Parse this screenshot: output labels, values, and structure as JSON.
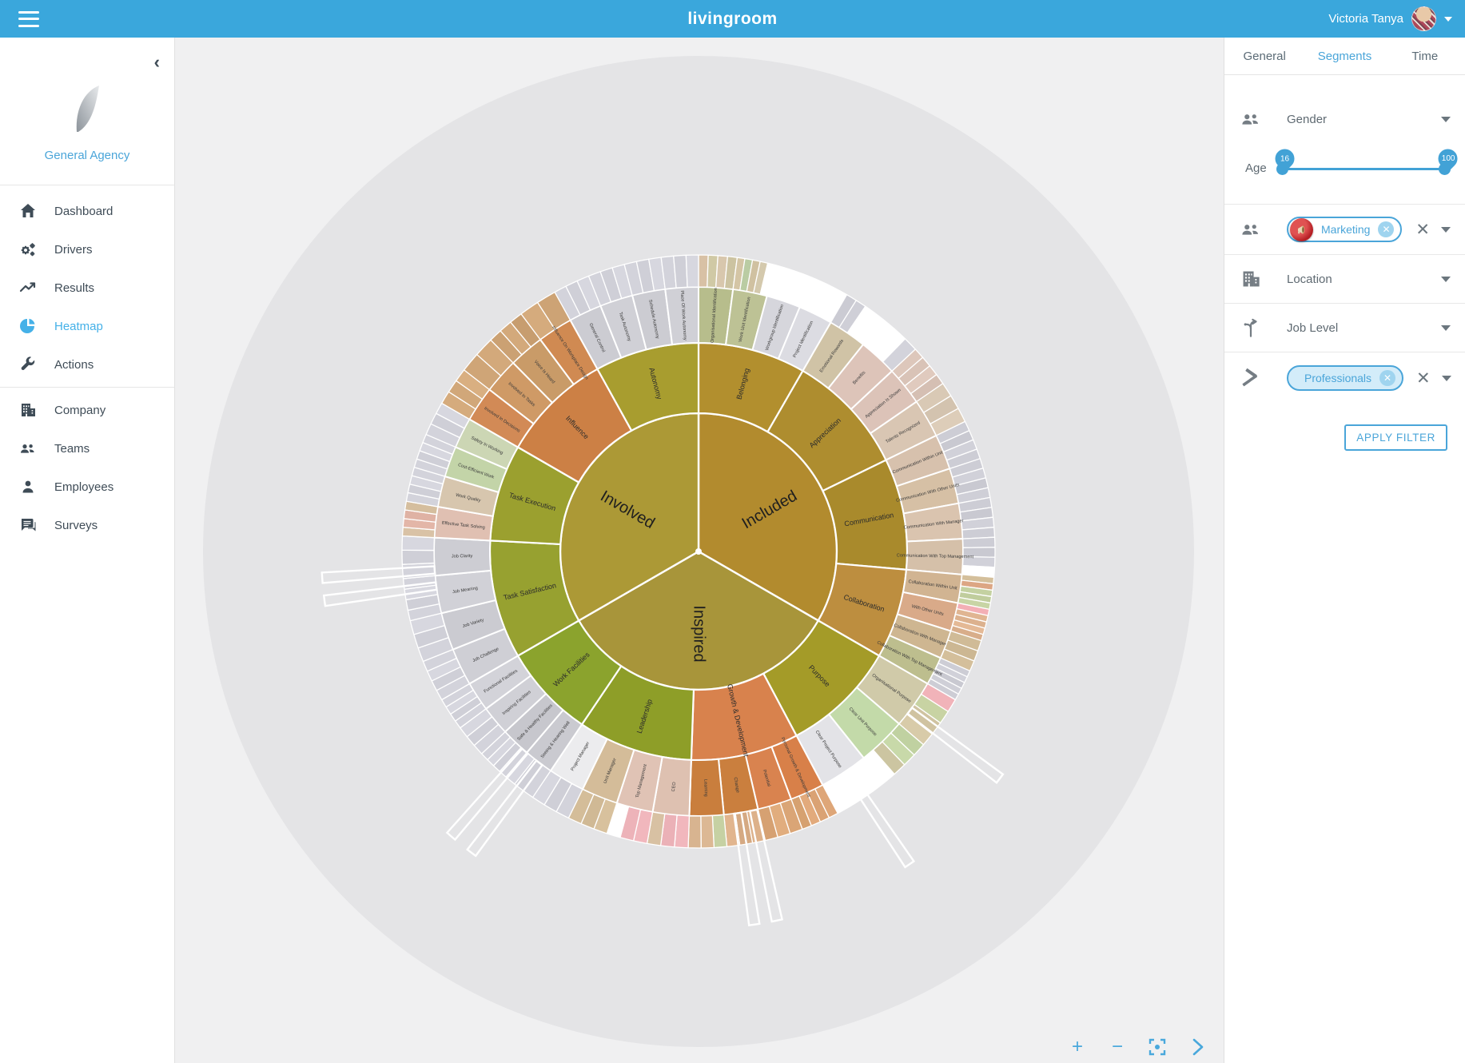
{
  "topbar": {
    "title": "livingroom",
    "user_name": "Victoria Tanya"
  },
  "sidebar": {
    "agency_name": "General Agency",
    "items": [
      {
        "label": "Dashboard",
        "icon": "home-icon",
        "active": false,
        "sep_after": false
      },
      {
        "label": "Drivers",
        "icon": "gears-icon",
        "active": false,
        "sep_after": false
      },
      {
        "label": "Results",
        "icon": "trending-up-icon",
        "active": false,
        "sep_after": false
      },
      {
        "label": "Heatmap",
        "icon": "pie-chart-icon",
        "active": true,
        "sep_after": false
      },
      {
        "label": "Actions",
        "icon": "wrench-icon",
        "active": false,
        "sep_after": true
      },
      {
        "label": "Company",
        "icon": "building-icon",
        "active": false,
        "sep_after": false
      },
      {
        "label": "Teams",
        "icon": "people-icon",
        "active": false,
        "sep_after": false
      },
      {
        "label": "Employees",
        "icon": "person-icon",
        "active": false,
        "sep_after": false
      },
      {
        "label": "Surveys",
        "icon": "chat-icon",
        "active": false,
        "sep_after": false
      }
    ]
  },
  "panel": {
    "tabs": [
      {
        "label": "General",
        "active": false
      },
      {
        "label": "Segments",
        "active": true
      },
      {
        "label": "Time",
        "active": false
      }
    ],
    "gender": {
      "label": "Gender",
      "icon": "people-icon"
    },
    "age": {
      "label": "Age",
      "min": "16",
      "max": "100"
    },
    "department": {
      "icon": "people-icon",
      "chip_label": "Marketing",
      "chip_icon": "megaphone-icon"
    },
    "location": {
      "label": "Location",
      "icon": "building-icon"
    },
    "job_level": {
      "label": "Job Level",
      "icon": "split-arrow-icon"
    },
    "profession": {
      "icon": "gavel-icon",
      "chip_label": "Professionals"
    },
    "apply_label": "APPLY FILTER"
  },
  "controls": {
    "zoom_in": "+",
    "zoom_out": "−",
    "fit": "fit-screen-icon",
    "next": "chevron-right-icon"
  },
  "colors": {
    "topbar": "#3aa7dc",
    "accent": "#4aa5d9",
    "active_nav": "#45b1e8",
    "main_bg": "#f0f0f1",
    "circle_bg": "#e4e4e6"
  },
  "chart_data": {
    "type": "sunburst",
    "rings": 4,
    "background_circle_radius": 620,
    "radii": [
      0,
      173,
      261,
      331,
      371
    ],
    "spokes_deg": [
      127,
      146,
      168,
      171.5,
      217,
      221,
      262.5,
      266
    ],
    "sectors": [
      {
        "label": "Included",
        "color": "#b28b2e",
        "start": 0,
        "end": 120,
        "children": [
          {
            "label": "Belonging",
            "color": "#b28f2e",
            "span": 30,
            "children": [
              {
                "label": "Organisational Identification",
                "color": "#b7bd8c",
                "leaves": [
                  "#d8c1a5",
                  "#d0c9a5",
                  "#d8c7ad",
                  "#ccc3a1"
                ]
              },
              {
                "label": "Work Unit Identification",
                "color": "#bdc295",
                "leaves": [
                  "#d4c5a5",
                  "#bacca3",
                  "#d0c1a1",
                  "#d4c9ad",
                  "#ffffff"
                ]
              },
              {
                "label": "Workgroup Identification",
                "color": "#d6d6dc",
                "leaves": [
                  "#ffffff",
                  "#ffffff",
                  "#ffffff",
                  "#ffffff"
                ]
              },
              {
                "label": "Project Identification",
                "color": "#dcdce2",
                "leaves": [
                  "#ffffff",
                  "#ffffff",
                  "#ffffff",
                  "#ffffff",
                  "#ffffff"
                ]
              }
            ]
          },
          {
            "label": "Appreciation",
            "color": "#ae8d2f",
            "span": 34,
            "children": [
              {
                "label": "Emotional Rewards",
                "color": "#d0c3a6",
                "leaves": [
                  "#cbcbd3",
                  "#cfcfd7",
                  "#ffffff",
                  "#ffffff"
                ]
              },
              {
                "label": "Benefits",
                "color": "#ddc4b9",
                "leaves": [
                  "#ffffff",
                  "#ffffff",
                  "#d3d3db"
                ]
              },
              {
                "label": "Appreciation Is Shown",
                "color": "#dcc3b8",
                "leaves": [
                  "#ddc7bb",
                  "#d9c3b7",
                  "#e0cabe",
                  "#d5bfb3"
                ]
              },
              {
                "label": "Talents Recognized",
                "color": "#d9c6b3",
                "leaves": [
                  "#d9c9b5",
                  "#d3c3af",
                  "#ddcdb9"
                ]
              }
            ]
          },
          {
            "label": "Communication",
            "color": "#a98a2c",
            "span": 31,
            "children": [
              {
                "label": "Communication Within Unit",
                "color": "#d7c1ad",
                "leaves": [
                  "#cdcdd5",
                  "#c9c9d1",
                  "#d1d1d9",
                  "#cdcdd5"
                ]
              },
              {
                "label": "Communication With Other Units",
                "color": "#d6c0a5",
                "leaves": [
                  "#cdcdd5",
                  "#d1d1d9",
                  "#c9c9d1",
                  "#cfcfd7"
                ]
              },
              {
                "label": "Communication With Manager",
                "color": "#dac4af",
                "leaves": [
                  "#cdcdd5",
                  "#c9c9d1",
                  "#d1d1d9",
                  "#cdcdd5"
                ]
              },
              {
                "label": "Communication With Top Management",
                "color": "#d5c0a9",
                "leaves": [
                  "#cdcdd5",
                  "#c9c9d1",
                  "#d1d1d9",
                  "#ffffff"
                ]
              }
            ]
          },
          {
            "label": "Collaboration",
            "color": "#bd8e3f",
            "span": 25,
            "children": [
              {
                "label": "Collaboration Within Unit",
                "color": "#d1b492",
                "leaves": [
                  "#d4bf9b",
                  "#dca684",
                  "#c4d1a1",
                  "#c0cd9d",
                  "#c8d5a5"
                ]
              },
              {
                "label": "With Other Units",
                "color": "#d9aa89",
                "leaves": [
                  "#f3afb5",
                  "#e0b592",
                  "#dcb18e",
                  "#e4b996",
                  "#d8ad8a"
                ]
              },
              {
                "label": "Collaboration With Manager",
                "color": "#ceb691",
                "leaves": [
                  "#d0bb97",
                  "#ccb793",
                  "#d4bf9b"
                ]
              },
              {
                "label": "Collaboration With Top Management",
                "color": "#bdbe8e",
                "leaves": [
                  "#cdcdd5",
                  "#d1d1d9",
                  "#c9c9d1",
                  "#cfcfd7",
                  "#cdcdd5"
                ]
              }
            ]
          }
        ]
      },
      {
        "label": "Inspired",
        "color": "#a8953a",
        "start": 120,
        "end": 240,
        "children": [
          {
            "label": "Purpose",
            "color": "#a49b28",
            "span": 32,
            "children": [
              {
                "label": "Organisational Purpose",
                "color": "#d0caa9",
                "leaves": [
                  "#f1b3b9",
                  "#c8d3a3",
                  "#d0c3a1",
                  "#d8cba9"
                ]
              },
              {
                "label": "Clear Unit Purpose",
                "color": "#c3daa9",
                "leaves": [
                  "#c0d1a1",
                  "#c8d9a9",
                  "#ccc5a1",
                  "#ffffff"
                ]
              },
              {
                "label": "Clear Project Purpose",
                "color": "#e3e3e7",
                "leaves": [
                  "#ffffff",
                  "#ffffff",
                  "#ffffff",
                  "#ffffff"
                ]
              }
            ]
          },
          {
            "label": "Growth & Development",
            "color": "#d8824d",
            "span": 30,
            "children": [
              {
                "label": "Personal Growth & Development",
                "color": "#d88049",
                "leaves": [
                  "#dea678",
                  "#daa274",
                  "#e2aa7c",
                  "#d6a170"
                ]
              },
              {
                "label": "Potential",
                "color": "#d9834f",
                "leaves": [
                  "#daa576",
                  "#e1ad7e",
                  "#d6a172"
                ]
              },
              {
                "label": "Change",
                "color": "#ca7f3e",
                "leaves": [
                  "#ddb18a",
                  "#d5a982",
                  "#e1b58e"
                ]
              },
              {
                "label": "Learning",
                "color": "#c97e3d",
                "leaves": [
                  "#c6d1a3",
                  "#dcb894",
                  "#d8b490"
                ]
              }
            ]
          },
          {
            "label": "Leadership",
            "color": "#8e9e28",
            "span": 32,
            "children": [
              {
                "label": "CEO",
                "color": "#dec1b1",
                "leaves": [
                  "#f1b7bd",
                  "#ebb1b7",
                  "#d8c1a3"
                ]
              },
              {
                "label": "Top Management",
                "color": "#e0c3b5",
                "leaves": [
                  "#f1b7bd",
                  "#edb3b9",
                  "#ffffff"
                ]
              },
              {
                "label": "Unit Manager",
                "color": "#d4bc99",
                "leaves": [
                  "#d8c19d",
                  "#d0b995",
                  "#d4bd99"
                ]
              },
              {
                "label": "Project Manager",
                "color": "#ececee",
                "leaves": [
                  "#d3d3db",
                  "#cfcfd7",
                  "#d7d7df"
                ]
              }
            ]
          },
          {
            "label": "Work Facilities",
            "color": "#8ba32d",
            "span": 26,
            "children": [
              {
                "label": "Seeing & Hearing Well",
                "color": "#cacad0",
                "leaves": [
                  "#d3d3db",
                  "#cfcfd7",
                  "#d7d7df"
                ]
              },
              {
                "label": "Safe & Healthy Facilities",
                "color": "#c7c7cd",
                "leaves": [
                  "#d3d3db",
                  "#cfcfd7",
                  "#d7d7df",
                  "#d3d3db"
                ]
              },
              {
                "label": "Inspiring Facilities",
                "color": "#d0d0d6",
                "leaves": [
                  "#d3d3db",
                  "#cfcfd7",
                  "#d7d7df"
                ]
              },
              {
                "label": "Functional Facilities",
                "color": "#d3d3d9",
                "leaves": [
                  "#d3d3db",
                  "#cfcfd7",
                  "#d7d7df",
                  "#d3d3db"
                ]
              }
            ]
          }
        ]
      },
      {
        "label": "Involved",
        "color": "#ac9936",
        "start": 240,
        "end": 360,
        "children": [
          {
            "label": "Task Satisfaction",
            "color": "#97a130",
            "span": 33,
            "children": [
              {
                "label": "Job Challenge",
                "color": "#cfcfd5",
                "leaves": [
                  "#d3d3db",
                  "#cfcfd7",
                  "#d7d7df",
                  "#d3d3db"
                ]
              },
              {
                "label": "Job Variety",
                "color": "#cbcbd1",
                "leaves": [
                  "#d3d3db",
                  "#cfcfd7",
                  "#d7d7df"
                ]
              },
              {
                "label": "Job Meaning",
                "color": "#d1d1d7",
                "leaves": [
                  "#d3d3db",
                  "#cfcfd7",
                  "#d7d7df",
                  "#d3d3db"
                ]
              },
              {
                "label": "Job Clarity",
                "color": "#cdcdd3",
                "leaves": [
                  "#d3d3db",
                  "#cfcfd7",
                  "#d7d7df"
                ]
              }
            ]
          },
          {
            "label": "Task Execution",
            "color": "#9ba02f",
            "span": 27,
            "children": [
              {
                "label": "Effective Task Solving",
                "color": "#e0c0b2",
                "leaves": [
                  "#d9c2a6",
                  "#e3b6a8",
                  "#dfb2a4",
                  "#d5be9e"
                ]
              },
              {
                "label": "Work Quality",
                "color": "#d7c6ae",
                "leaves": [
                  "#d3d3db",
                  "#cfcfd7",
                  "#d7d7df",
                  "#d3d3db"
                ]
              },
              {
                "label": "Cost-Efficient Work",
                "color": "#c3d4a8",
                "leaves": [
                  "#d3d3db",
                  "#cfcfd7",
                  "#d7d7df",
                  "#d3d3db"
                ]
              },
              {
                "label": "Safety In Working",
                "color": "#ccd6b4",
                "leaves": [
                  "#d3d3db",
                  "#cfcfd7",
                  "#d7d7df"
                ]
              }
            ]
          },
          {
            "label": "Influence",
            "color": "#cc8045",
            "span": 31,
            "children": [
              {
                "label": "Involved In Decisions",
                "color": "#d28a56",
                "leaves": [
                  "#d5ab7d",
                  "#d1a779",
                  "#d9af81"
                ]
              },
              {
                "label": "Involved In Tasks",
                "color": "#cf9a66",
                "leaves": [
                  "#cfa577",
                  "#d3a97b"
                ]
              },
              {
                "label": "Voice Is Heard",
                "color": "#c99b68",
                "leaves": [
                  "#cba173",
                  "#d3a97b",
                  "#c79d6f"
                ]
              },
              {
                "label": "Influence On Workplace Design",
                "color": "#d08a52",
                "leaves": [
                  "#d5ab7d",
                  "#cda375"
                ]
              }
            ]
          },
          {
            "label": "Autonomy",
            "color": "#a89d2f",
            "span": 29,
            "children": [
              {
                "label": "General Control",
                "color": "#ccccd2",
                "leaves": [
                  "#d3d3db",
                  "#cfcfd7",
                  "#d7d7df"
                ]
              },
              {
                "label": "Task Autonomy",
                "color": "#d0d0d6",
                "leaves": [
                  "#d3d3db",
                  "#cfcfd7",
                  "#d7d7df"
                ]
              },
              {
                "label": "Schedule Autonomy",
                "color": "#ccccd2",
                "leaves": [
                  "#d3d3db",
                  "#cfcfd7",
                  "#d7d7df"
                ]
              },
              {
                "label": "Place Of Work Autonomy",
                "color": "#d0d0d6",
                "leaves": [
                  "#d3d3db",
                  "#cfcfd7",
                  "#d7d7df"
                ]
              }
            ]
          }
        ]
      }
    ]
  }
}
